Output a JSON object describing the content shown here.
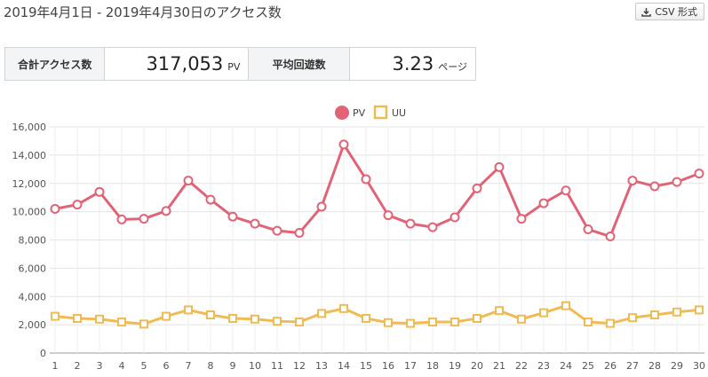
{
  "header": {
    "title": "2019年4月1日 - 2019年4月30日のアクセス数",
    "csv_label": "CSV 形式"
  },
  "summary": {
    "total_label": "合計アクセス数",
    "total_value": "317,053",
    "total_unit": "PV",
    "avg_label": "平均回遊数",
    "avg_value": "3.23",
    "avg_unit": "ページ"
  },
  "colors": {
    "pv": "#e06476",
    "uu": "#eebb55",
    "saturday": "#3388cc",
    "sunday": "#dd4466",
    "weekday": "#555555"
  },
  "chart_data": {
    "type": "line",
    "x": [
      1,
      2,
      3,
      4,
      5,
      6,
      7,
      8,
      9,
      10,
      11,
      12,
      13,
      14,
      15,
      16,
      17,
      18,
      19,
      20,
      21,
      22,
      23,
      24,
      25,
      26,
      27,
      28,
      29,
      30
    ],
    "x_tick_colors": [
      "weekday",
      "weekday",
      "weekday",
      "weekday",
      "weekday",
      "saturday",
      "sunday",
      "weekday",
      "weekday",
      "weekday",
      "weekday",
      "weekday",
      "saturday",
      "sunday",
      "weekday",
      "weekday",
      "weekday",
      "weekday",
      "weekday",
      "saturday",
      "sunday",
      "weekday",
      "weekday",
      "weekday",
      "weekday",
      "weekday",
      "saturday",
      "sunday",
      "weekday",
      "weekday"
    ],
    "ylim": [
      0,
      16000
    ],
    "yticks": [
      0,
      2000,
      4000,
      6000,
      8000,
      10000,
      12000,
      14000,
      16000
    ],
    "ytick_labels": [
      "0",
      "2,000",
      "4,000",
      "6,000",
      "8,000",
      "10,000",
      "12,000",
      "14,000",
      "16,000"
    ],
    "grid": true,
    "legend_position": "top-center",
    "series": [
      {
        "name": "PV",
        "marker": "circle",
        "values": [
          10200,
          10500,
          11400,
          9450,
          9500,
          10050,
          12200,
          10850,
          9650,
          9150,
          8650,
          8500,
          10350,
          14750,
          12300,
          9750,
          9150,
          8900,
          9600,
          11650,
          13150,
          9500,
          10600,
          11500,
          8750,
          8250,
          12200,
          11800,
          12100,
          12700
        ]
      },
      {
        "name": "UU",
        "marker": "square",
        "values": [
          2600,
          2450,
          2400,
          2200,
          2050,
          2600,
          3050,
          2700,
          2450,
          2400,
          2250,
          2200,
          2800,
          3150,
          2450,
          2150,
          2100,
          2200,
          2200,
          2450,
          3000,
          2400,
          2850,
          3350,
          2200,
          2100,
          2500,
          2700,
          2900,
          3050
        ]
      }
    ]
  }
}
